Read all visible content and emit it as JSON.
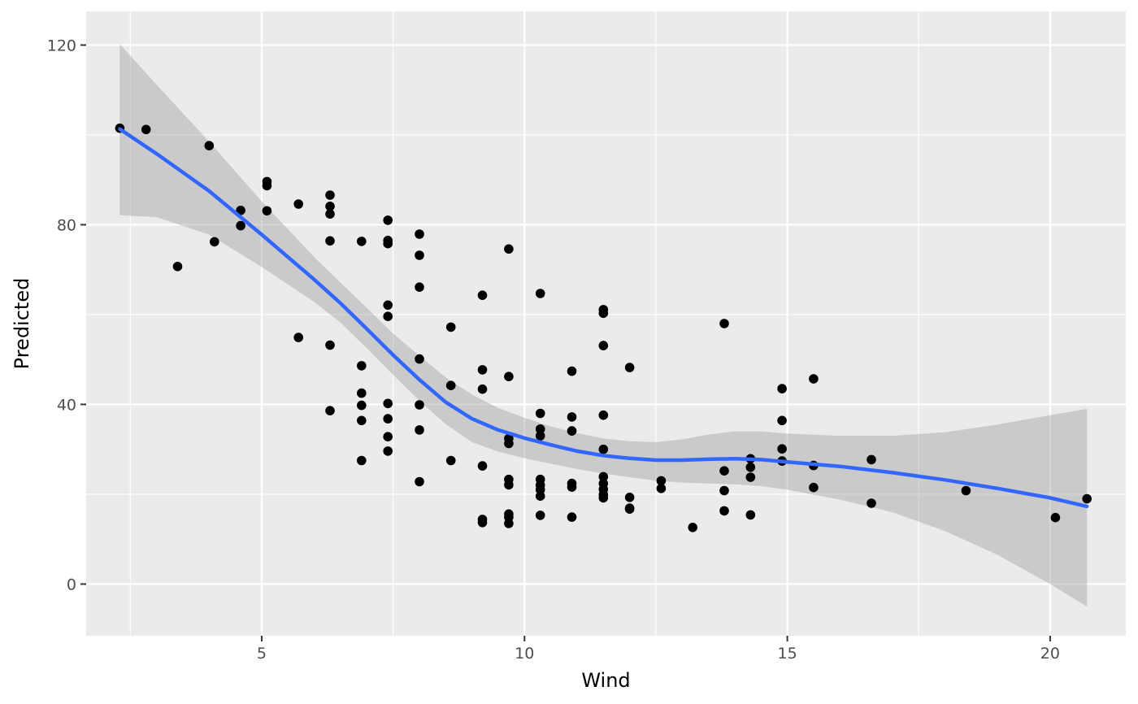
{
  "chart_data": {
    "type": "scatter",
    "xlabel": "Wind",
    "ylabel": "Predicted",
    "xlim": [
      1.66,
      21.44
    ],
    "ylim": [
      -11.5,
      127.5
    ],
    "x_ticks": [
      5,
      10,
      15,
      20
    ],
    "x_tick_labels": [
      "5",
      "10",
      "15",
      "20"
    ],
    "y_ticks": [
      0,
      40,
      80,
      120
    ],
    "y_tick_labels": [
      "0",
      "40",
      "80",
      "120"
    ],
    "grid": true,
    "colors": {
      "panel": "#ebebeb",
      "grid": "#ffffff",
      "points": "#000000",
      "smooth_line": "#3366ff",
      "ribbon": "#999999"
    },
    "points": [
      [
        2.3,
        101.5
      ],
      [
        2.8,
        101.2
      ],
      [
        3.4,
        70.7
      ],
      [
        4.0,
        97.6
      ],
      [
        4.1,
        76.2
      ],
      [
        4.6,
        79.8
      ],
      [
        4.6,
        83.2
      ],
      [
        5.1,
        89.6
      ],
      [
        5.1,
        88.7
      ],
      [
        5.1,
        83.1
      ],
      [
        5.7,
        84.6
      ],
      [
        5.7,
        54.9
      ],
      [
        6.3,
        86.6
      ],
      [
        6.3,
        84.1
      ],
      [
        6.3,
        82.4
      ],
      [
        6.3,
        76.4
      ],
      [
        6.3,
        53.2
      ],
      [
        6.3,
        38.6
      ],
      [
        6.9,
        76.3
      ],
      [
        6.9,
        48.6
      ],
      [
        6.9,
        42.5
      ],
      [
        6.9,
        39.8
      ],
      [
        6.9,
        36.4
      ],
      [
        6.9,
        27.5
      ],
      [
        7.4,
        81.0
      ],
      [
        7.4,
        76.5
      ],
      [
        7.4,
        75.8
      ],
      [
        7.4,
        62.1
      ],
      [
        7.4,
        59.6
      ],
      [
        7.4,
        40.2
      ],
      [
        7.4,
        36.8
      ],
      [
        7.4,
        32.8
      ],
      [
        7.4,
        29.6
      ],
      [
        8.0,
        77.9
      ],
      [
        8.0,
        73.2
      ],
      [
        8.0,
        66.1
      ],
      [
        8.0,
        50.1
      ],
      [
        8.0,
        39.9
      ],
      [
        8.0,
        34.3
      ],
      [
        8.0,
        22.8
      ],
      [
        8.6,
        57.2
      ],
      [
        8.6,
        44.2
      ],
      [
        8.6,
        27.5
      ],
      [
        9.2,
        64.3
      ],
      [
        9.2,
        47.7
      ],
      [
        9.2,
        43.4
      ],
      [
        9.2,
        26.3
      ],
      [
        9.2,
        14.4
      ],
      [
        9.2,
        13.7
      ],
      [
        9.7,
        74.6
      ],
      [
        9.7,
        46.2
      ],
      [
        9.7,
        32.4
      ],
      [
        9.7,
        31.3
      ],
      [
        9.7,
        23.3
      ],
      [
        9.7,
        22.1
      ],
      [
        9.7,
        15.6
      ],
      [
        9.7,
        14.9
      ],
      [
        9.7,
        13.5
      ],
      [
        10.3,
        64.7
      ],
      [
        10.3,
        38.0
      ],
      [
        10.3,
        34.5
      ],
      [
        10.3,
        33.0
      ],
      [
        10.3,
        23.3
      ],
      [
        10.3,
        22.0
      ],
      [
        10.3,
        21.0
      ],
      [
        10.3,
        19.6
      ],
      [
        10.3,
        15.3
      ],
      [
        10.9,
        47.4
      ],
      [
        10.9,
        37.2
      ],
      [
        10.9,
        34.1
      ],
      [
        10.9,
        22.4
      ],
      [
        10.9,
        21.6
      ],
      [
        10.9,
        14.9
      ],
      [
        11.5,
        61.1
      ],
      [
        11.5,
        60.3
      ],
      [
        11.5,
        53.1
      ],
      [
        11.5,
        37.6
      ],
      [
        11.5,
        30.0
      ],
      [
        11.5,
        23.9
      ],
      [
        11.5,
        22.4
      ],
      [
        11.5,
        21.1
      ],
      [
        11.5,
        19.9
      ],
      [
        11.5,
        19.2
      ],
      [
        12.0,
        48.2
      ],
      [
        12.0,
        19.3
      ],
      [
        12.0,
        16.9
      ],
      [
        12.0,
        16.7
      ],
      [
        12.6,
        23.0
      ],
      [
        12.6,
        21.3
      ],
      [
        13.2,
        12.6
      ],
      [
        13.8,
        58.0
      ],
      [
        13.8,
        25.2
      ],
      [
        13.8,
        20.8
      ],
      [
        13.8,
        16.3
      ],
      [
        14.3,
        27.9
      ],
      [
        14.3,
        26.0
      ],
      [
        14.3,
        23.8
      ],
      [
        14.3,
        15.4
      ],
      [
        14.9,
        43.5
      ],
      [
        14.9,
        36.4
      ],
      [
        14.9,
        30.1
      ],
      [
        14.9,
        27.4
      ],
      [
        15.5,
        45.7
      ],
      [
        15.5,
        26.4
      ],
      [
        15.5,
        21.5
      ],
      [
        16.6,
        27.7
      ],
      [
        16.6,
        18.0
      ],
      [
        18.4,
        20.8
      ],
      [
        20.1,
        14.8
      ],
      [
        20.7,
        19.0
      ]
    ],
    "smooth": [
      [
        2.3,
        101.3
      ],
      [
        3.0,
        95.8
      ],
      [
        4.0,
        87.5
      ],
      [
        5.0,
        77.8
      ],
      [
        6.0,
        67.8
      ],
      [
        6.5,
        62.5
      ],
      [
        7.0,
        56.8
      ],
      [
        7.5,
        51.0
      ],
      [
        8.0,
        45.5
      ],
      [
        8.5,
        40.5
      ],
      [
        9.0,
        36.8
      ],
      [
        9.5,
        34.3
      ],
      [
        10.0,
        32.5
      ],
      [
        10.5,
        31.0
      ],
      [
        11.0,
        29.6
      ],
      [
        11.5,
        28.6
      ],
      [
        12.0,
        28.0
      ],
      [
        12.5,
        27.6
      ],
      [
        13.0,
        27.6
      ],
      [
        13.5,
        27.8
      ],
      [
        14.0,
        27.9
      ],
      [
        14.5,
        27.7
      ],
      [
        15.0,
        27.2
      ],
      [
        16.0,
        26.2
      ],
      [
        17.0,
        24.8
      ],
      [
        18.0,
        23.2
      ],
      [
        19.0,
        21.3
      ],
      [
        20.0,
        19.2
      ],
      [
        20.7,
        17.3
      ]
    ],
    "ribbon_upper": [
      [
        2.3,
        120.2
      ],
      [
        3.0,
        111.2
      ],
      [
        4.0,
        98.5
      ],
      [
        5.0,
        85.2
      ],
      [
        6.0,
        72.8
      ],
      [
        6.5,
        67.1
      ],
      [
        7.0,
        61.5
      ],
      [
        7.5,
        55.8
      ],
      [
        8.0,
        50.8
      ],
      [
        8.5,
        46.0
      ],
      [
        9.0,
        42.2
      ],
      [
        9.5,
        39.2
      ],
      [
        10.0,
        37.0
      ],
      [
        10.5,
        35.1
      ],
      [
        11.0,
        33.6
      ],
      [
        11.5,
        32.4
      ],
      [
        12.0,
        31.8
      ],
      [
        12.5,
        31.6
      ],
      [
        13.0,
        32.2
      ],
      [
        13.5,
        33.3
      ],
      [
        14.0,
        34.0
      ],
      [
        14.5,
        34.0
      ],
      [
        15.0,
        33.5
      ],
      [
        16.0,
        33.0
      ],
      [
        17.0,
        33.0
      ],
      [
        18.0,
        33.8
      ],
      [
        19.0,
        35.5
      ],
      [
        20.0,
        37.6
      ],
      [
        20.7,
        39.0
      ]
    ],
    "ribbon_lower": [
      [
        2.3,
        82.1
      ],
      [
        3.0,
        81.7
      ],
      [
        4.0,
        77.8
      ],
      [
        5.0,
        70.6
      ],
      [
        6.0,
        62.8
      ],
      [
        6.5,
        58.2
      ],
      [
        7.0,
        52.5
      ],
      [
        7.5,
        46.6
      ],
      [
        8.0,
        40.8
      ],
      [
        8.5,
        35.6
      ],
      [
        9.0,
        31.6
      ],
      [
        9.5,
        29.5
      ],
      [
        10.0,
        28.0
      ],
      [
        10.5,
        26.8
      ],
      [
        11.0,
        25.6
      ],
      [
        11.5,
        24.6
      ],
      [
        12.0,
        23.8
      ],
      [
        12.5,
        23.0
      ],
      [
        13.0,
        22.6
      ],
      [
        13.5,
        22.4
      ],
      [
        14.0,
        22.2
      ],
      [
        14.5,
        21.8
      ],
      [
        15.0,
        21.0
      ],
      [
        16.0,
        18.8
      ],
      [
        17.0,
        16.0
      ],
      [
        18.0,
        11.8
      ],
      [
        19.0,
        6.5
      ],
      [
        20.0,
        0.0
      ],
      [
        20.7,
        -5.0
      ]
    ]
  }
}
